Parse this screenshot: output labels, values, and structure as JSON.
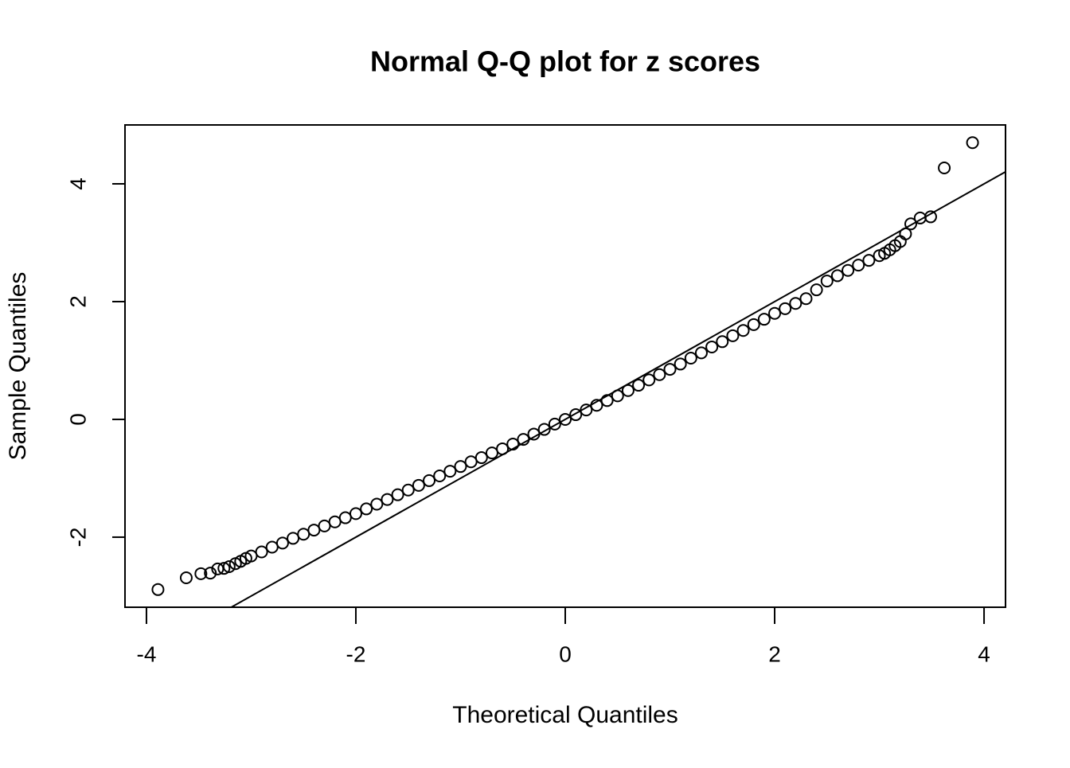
{
  "chart_data": {
    "type": "scatter",
    "title": "Normal Q-Q plot for z scores",
    "x_label": "Theoretical Quantiles",
    "y_label": "Sample Quantiles",
    "x": [
      -3.89,
      -3.62,
      -3.48,
      -3.39,
      -3.32,
      -3.26,
      -3.21,
      -3.15,
      -3.1,
      -3.05,
      -3.0,
      -2.9,
      -2.8,
      -2.7,
      -2.6,
      -2.5,
      -2.4,
      -2.3,
      -2.2,
      -2.1,
      -2.0,
      -1.9,
      -1.8,
      -1.7,
      -1.6,
      -1.5,
      -1.4,
      -1.3,
      -1.2,
      -1.1,
      -1.0,
      -0.9,
      -0.8,
      -0.7,
      -0.6,
      -0.5,
      -0.4,
      -0.3,
      -0.2,
      -0.1,
      0,
      0.1,
      0.2,
      0.3,
      0.4,
      0.5,
      0.6,
      0.7,
      0.8,
      0.9,
      1.0,
      1.1,
      1.2,
      1.3,
      1.4,
      1.5,
      1.6,
      1.7,
      1.8,
      1.9,
      2.0,
      2.1,
      2.2,
      2.3,
      2.4,
      2.5,
      2.6,
      2.7,
      2.8,
      2.9,
      3.0,
      3.05,
      3.1,
      3.15,
      3.2,
      3.25,
      3.3,
      3.39,
      3.49,
      3.62,
      3.89
    ],
    "values": [
      -2.89,
      -2.69,
      -2.62,
      -2.61,
      -2.54,
      -2.53,
      -2.5,
      -2.45,
      -2.41,
      -2.36,
      -2.32,
      -2.25,
      -2.17,
      -2.1,
      -2.02,
      -1.95,
      -1.88,
      -1.81,
      -1.74,
      -1.67,
      -1.6,
      -1.52,
      -1.44,
      -1.36,
      -1.28,
      -1.2,
      -1.12,
      -1.04,
      -0.96,
      -0.88,
      -0.8,
      -0.72,
      -0.65,
      -0.57,
      -0.5,
      -0.42,
      -0.34,
      -0.25,
      -0.17,
      -0.08,
      0,
      0.08,
      0.16,
      0.24,
      0.32,
      0.4,
      0.49,
      0.58,
      0.67,
      0.76,
      0.85,
      0.94,
      1.04,
      1.13,
      1.23,
      1.32,
      1.42,
      1.51,
      1.61,
      1.7,
      1.8,
      1.88,
      1.97,
      2.05,
      2.2,
      2.35,
      2.44,
      2.53,
      2.62,
      2.7,
      2.78,
      2.82,
      2.88,
      2.95,
      3.02,
      3.15,
      3.32,
      3.42,
      3.44,
      4.27,
      4.7
    ],
    "reference_line": {
      "x": [
        -3.19,
        4.2
      ],
      "values": [
        -3.19,
        4.2
      ]
    },
    "color": "#000000",
    "xlim": [
      -4.205,
      4.205
    ],
    "ylim": [
      -3.19,
      5.0
    ],
    "xticks": [
      -4,
      -2,
      0,
      2,
      4
    ],
    "yticks": [
      -2,
      0,
      2,
      4
    ]
  }
}
